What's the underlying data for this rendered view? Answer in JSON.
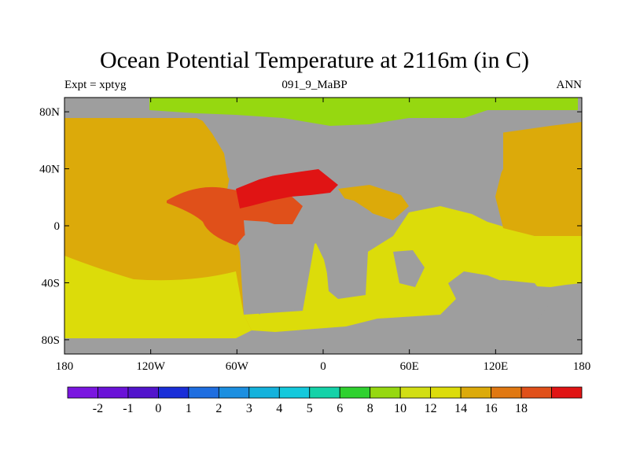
{
  "title": "Ocean Potential Temperature at 2116m (in C)",
  "left_label": "Expt = xptyg",
  "center_label": "091_9_MaBP",
  "right_label": "ANN",
  "axes": {
    "lon_ticks": [
      {
        "value": -180,
        "label": "180"
      },
      {
        "value": -120,
        "label": "120W"
      },
      {
        "value": -60,
        "label": "60W"
      },
      {
        "value": 0,
        "label": "0"
      },
      {
        "value": 60,
        "label": "60E"
      },
      {
        "value": 120,
        "label": "120E"
      },
      {
        "value": 180,
        "label": "180"
      }
    ],
    "lat_ticks": [
      {
        "value": 80,
        "label": "80N"
      },
      {
        "value": 40,
        "label": "40N"
      },
      {
        "value": 0,
        "label": "0"
      },
      {
        "value": -40,
        "label": "40S"
      },
      {
        "value": -80,
        "label": "80S"
      }
    ]
  },
  "colorbar": {
    "colors": [
      "#7a16e0",
      "#6a12d8",
      "#5214cc",
      "#1a2ed8",
      "#1f6ee0",
      "#1c8fe0",
      "#14b2dc",
      "#14c9dc",
      "#14d2a8",
      "#2fd12f",
      "#96d810",
      "#d2de14",
      "#dcdc0a",
      "#dcaa0a",
      "#e07812",
      "#e0501a",
      "#e01414"
    ],
    "labels": [
      "-2",
      "-1",
      "0",
      "1",
      "2",
      "3",
      "4",
      "5",
      "6",
      "8",
      "10",
      "12",
      "14",
      "16",
      "18"
    ]
  },
  "colors": {
    "land": "#9e9e9e",
    "arctic": "#96d810",
    "ocean_12": "#dcdc0a",
    "ocean_14": "#dcaa0a",
    "ocean_16": "#e0501a",
    "ocean_18": "#e01414"
  }
}
